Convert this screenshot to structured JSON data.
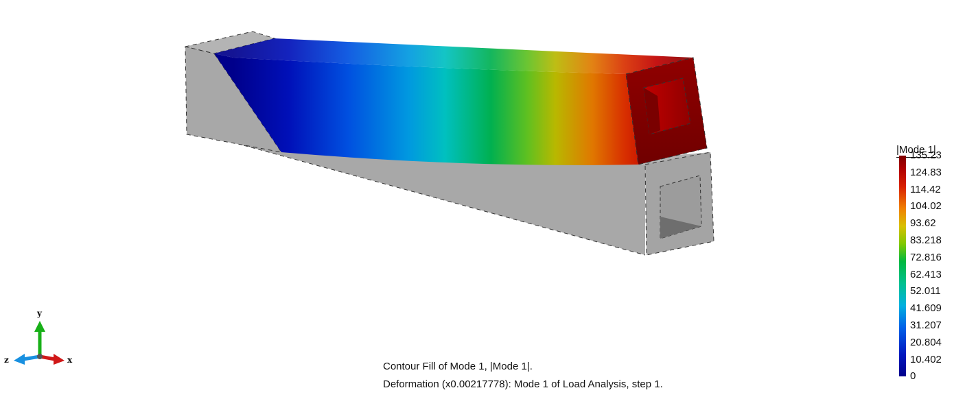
{
  "legend": {
    "title": "|Mode 1|",
    "labels": [
      "135.23",
      "124.83",
      "114.42",
      "104.02",
      "93.62",
      "83.218",
      "72.816",
      "62.413",
      "52.011",
      "41.609",
      "31.207",
      "20.804",
      "10.402",
      "0"
    ],
    "colors": [
      "#00008b",
      "#0030c8",
      "#0080ff",
      "#00c8c8",
      "#00c864",
      "#78c800",
      "#c8c800",
      "#ff8000",
      "#d00000",
      "#800000"
    ]
  },
  "caption": {
    "line1": "Contour Fill of Mode 1, |Mode 1|.",
    "line2": "Deformation (x0.00217778): Mode 1 of Load Analysis, step 1."
  },
  "triad": {
    "x_label": "x",
    "y_label": "y",
    "z_label": "z",
    "x_color": "#d01818",
    "y_color": "#18b018",
    "z_color": "#1890e0"
  },
  "model": {
    "undeformed_color": "#a8a8a8",
    "edge_color": "#333333"
  }
}
